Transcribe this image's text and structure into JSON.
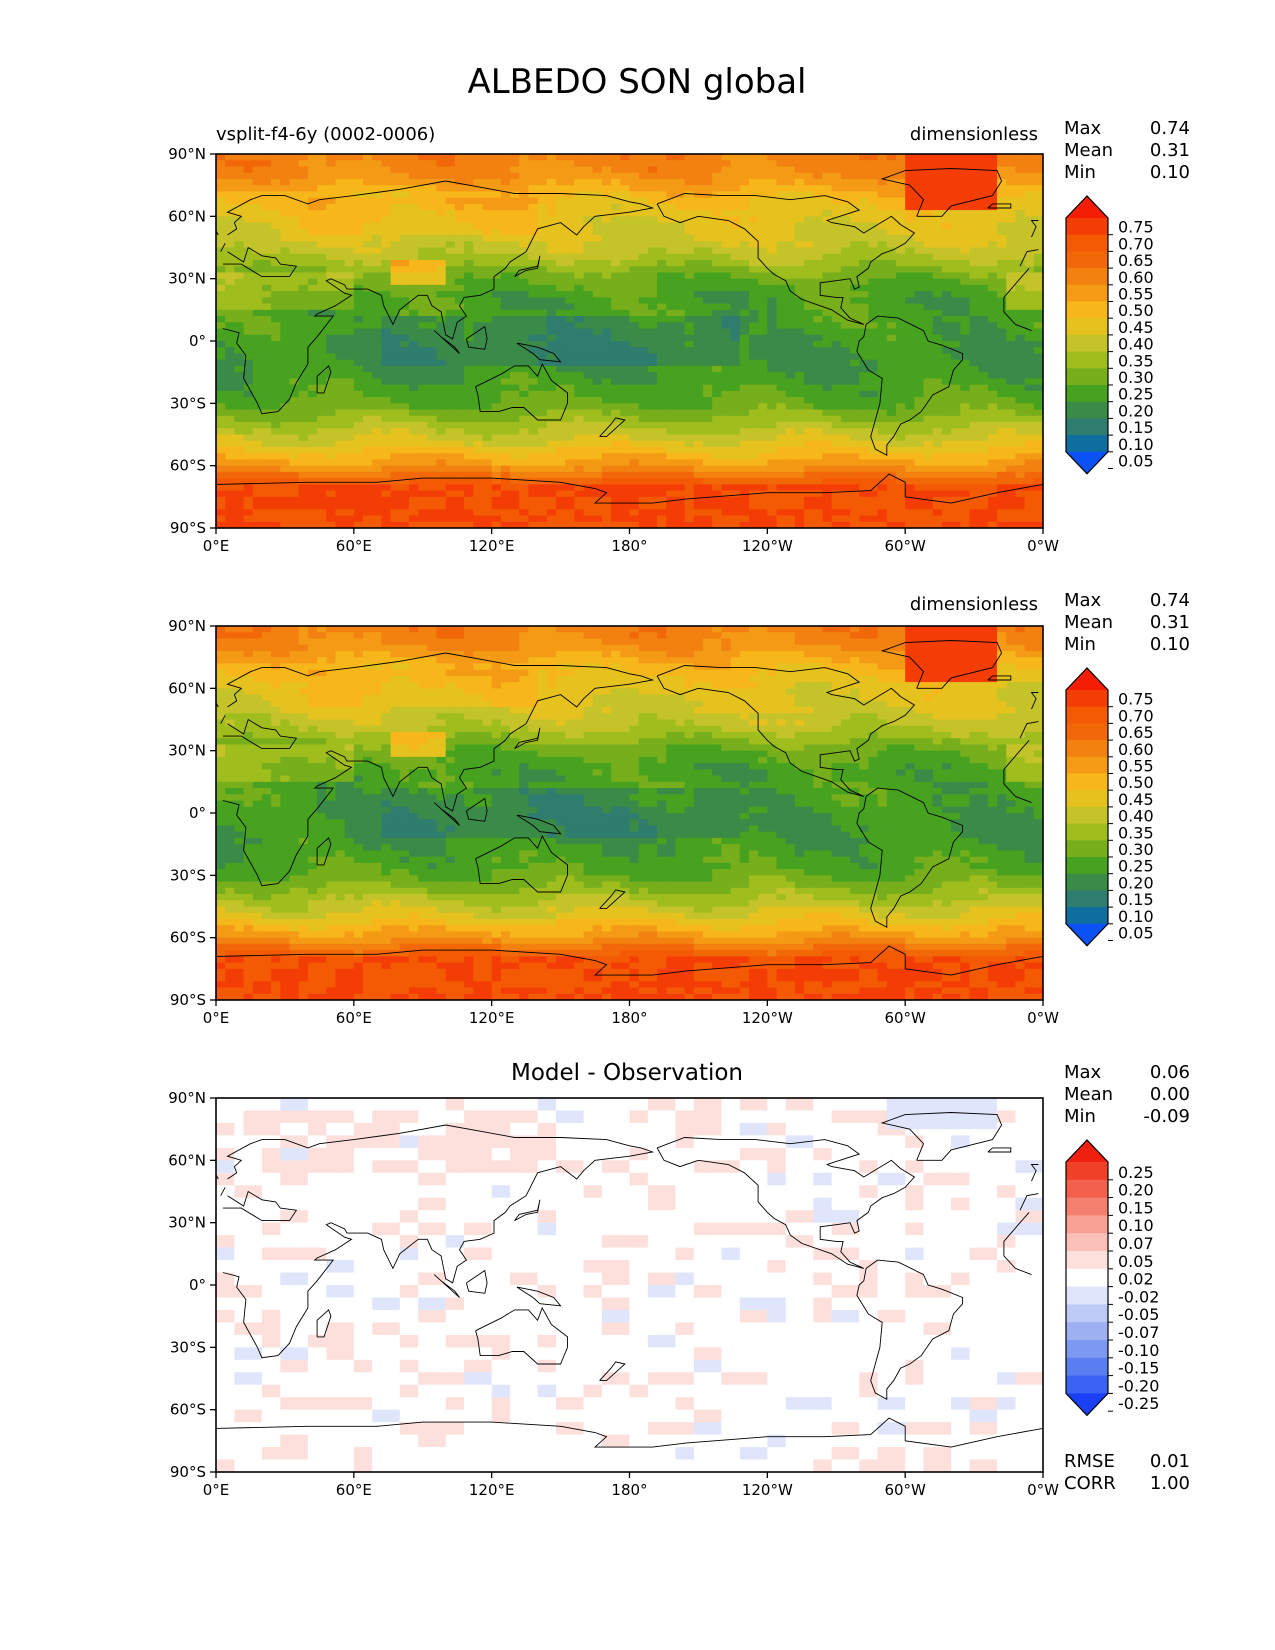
{
  "title": "ALBEDO SON global",
  "panels": [
    {
      "left_label": "vsplit-f4-6y (0002-0006)",
      "center_label": "",
      "units": "dimensionless",
      "stats": [
        {
          "label": "Max",
          "value": "0.74"
        },
        {
          "label": "Mean",
          "value": "0.31"
        },
        {
          "label": "Min",
          "value": "0.10"
        }
      ],
      "extra_stats": [],
      "colorbar_ticks": [
        "0.75",
        "0.70",
        "0.65",
        "0.60",
        "0.55",
        "0.50",
        "0.45",
        "0.40",
        "0.35",
        "0.30",
        "0.25",
        "0.20",
        "0.15",
        "0.10",
        "0.05"
      ],
      "colormap": "field",
      "field": "model"
    },
    {
      "left_label": "",
      "center_label": "",
      "units": "dimensionless",
      "stats": [
        {
          "label": "Max",
          "value": "0.74"
        },
        {
          "label": "Mean",
          "value": "0.31"
        },
        {
          "label": "Min",
          "value": "0.10"
        }
      ],
      "extra_stats": [],
      "colorbar_ticks": [
        "0.75",
        "0.70",
        "0.65",
        "0.60",
        "0.55",
        "0.50",
        "0.45",
        "0.40",
        "0.35",
        "0.30",
        "0.25",
        "0.20",
        "0.15",
        "0.10",
        "0.05"
      ],
      "colormap": "field",
      "field": "obs"
    },
    {
      "left_label": "",
      "center_label": "Model - Observation",
      "units": "",
      "stats": [
        {
          "label": "Max",
          "value": "0.06"
        },
        {
          "label": "Mean",
          "value": "0.00"
        },
        {
          "label": "Min",
          "value": "-0.09"
        }
      ],
      "extra_stats": [
        {
          "label": "RMSE",
          "value": "0.01"
        },
        {
          "label": "CORR",
          "value": "1.00"
        }
      ],
      "colorbar_ticks": [
        "0.25",
        "0.20",
        "0.15",
        "0.10",
        "0.07",
        "0.05",
        "0.02",
        "-0.02",
        "-0.05",
        "-0.07",
        "-0.10",
        "-0.15",
        "-0.20",
        "-0.25"
      ],
      "colormap": "diff",
      "field": "diff"
    }
  ],
  "axes": {
    "x_ticks": [
      "0°E",
      "60°E",
      "120°E",
      "180°",
      "120°W",
      "60°W",
      "0°W"
    ],
    "y_ticks": [
      "90°N",
      "60°N",
      "30°N",
      "0°",
      "30°S",
      "60°S",
      "90°S"
    ]
  },
  "colors": {
    "field_levels": [
      "#0a52f5",
      "#0f6e9e",
      "#2f7d6e",
      "#3a8a48",
      "#47a21f",
      "#77ae1b",
      "#9fbe1d",
      "#c4c329",
      "#e6c21e",
      "#f7b61a",
      "#f49a14",
      "#f2810f",
      "#f26708",
      "#f45a04",
      "#f43d05",
      "#f51e04"
    ],
    "diff_levels": [
      "#1a3ff5",
      "#3b62f2",
      "#5a7ef2",
      "#7d98f0",
      "#9db0f2",
      "#bccaf5",
      "#dfe6fb",
      "#ffffff",
      "#fde0dc",
      "#fbc0b7",
      "#f9a194",
      "#f68070",
      "#f3604c",
      "#f14028",
      "#ef2010"
    ]
  },
  "chart_data": [
    {
      "type": "heatmap",
      "subtitle": "vsplit-f4-6y (0002-0006)",
      "units": "dimensionless",
      "xlim": [
        0,
        360
      ],
      "ylim": [
        -90,
        90
      ],
      "x_tick_values": [
        0,
        60,
        120,
        180,
        240,
        300,
        360
      ],
      "y_tick_values": [
        90,
        60,
        30,
        0,
        -30,
        -60,
        -90
      ],
      "levels": [
        0.05,
        0.1,
        0.15,
        0.2,
        0.25,
        0.3,
        0.35,
        0.4,
        0.45,
        0.5,
        0.55,
        0.6,
        0.65,
        0.7,
        0.75
      ],
      "max": 0.74,
      "mean": 0.31,
      "min": 0.1,
      "zonal_profile": {
        "lat": [
          90,
          80,
          70,
          60,
          50,
          40,
          30,
          20,
          10,
          0,
          -10,
          -20,
          -30,
          -40,
          -50,
          -60,
          -70,
          -80,
          -90
        ],
        "value": [
          0.58,
          0.55,
          0.47,
          0.42,
          0.4,
          0.35,
          0.26,
          0.22,
          0.23,
          0.21,
          0.2,
          0.22,
          0.25,
          0.33,
          0.42,
          0.53,
          0.68,
          0.7,
          0.7
        ]
      }
    },
    {
      "type": "heatmap",
      "units": "dimensionless",
      "xlim": [
        0,
        360
      ],
      "ylim": [
        -90,
        90
      ],
      "levels": [
        0.05,
        0.1,
        0.15,
        0.2,
        0.25,
        0.3,
        0.35,
        0.4,
        0.45,
        0.5,
        0.55,
        0.6,
        0.65,
        0.7,
        0.75
      ],
      "max": 0.74,
      "mean": 0.31,
      "min": 0.1,
      "zonal_profile": {
        "lat": [
          90,
          80,
          70,
          60,
          50,
          40,
          30,
          20,
          10,
          0,
          -10,
          -20,
          -30,
          -40,
          -50,
          -60,
          -70,
          -80,
          -90
        ],
        "value": [
          0.58,
          0.55,
          0.47,
          0.42,
          0.4,
          0.35,
          0.26,
          0.22,
          0.23,
          0.21,
          0.2,
          0.22,
          0.25,
          0.33,
          0.42,
          0.53,
          0.68,
          0.7,
          0.7
        ]
      }
    },
    {
      "type": "heatmap",
      "title": "Model - Observation",
      "xlim": [
        0,
        360
      ],
      "ylim": [
        -90,
        90
      ],
      "levels": [
        -0.25,
        -0.2,
        -0.15,
        -0.1,
        -0.07,
        -0.05,
        -0.02,
        0.02,
        0.05,
        0.07,
        0.1,
        0.15,
        0.2,
        0.25
      ],
      "max": 0.06,
      "mean": 0.0,
      "min": -0.09,
      "rmse": 0.01,
      "corr": 1.0
    }
  ]
}
